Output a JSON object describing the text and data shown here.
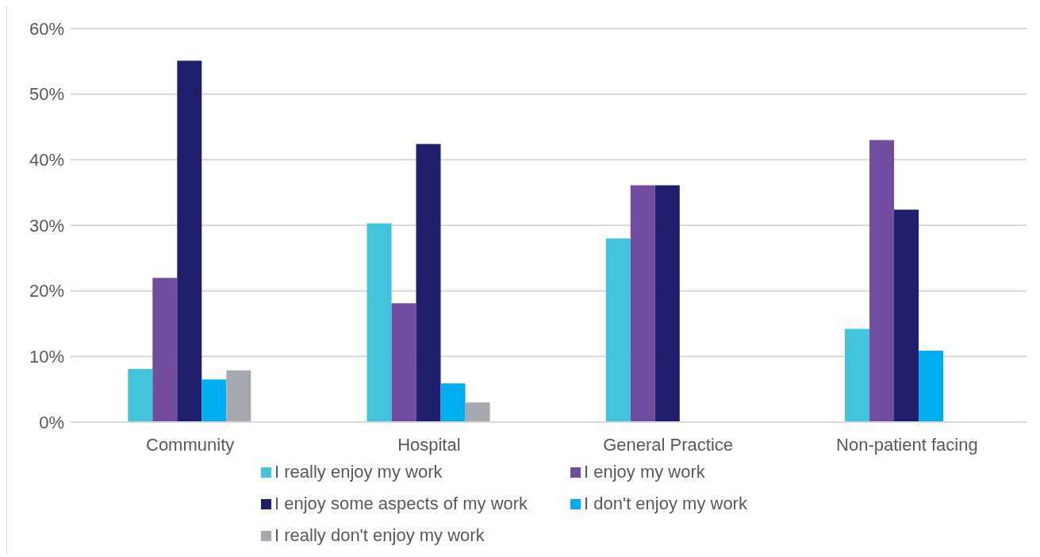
{
  "chart_data": {
    "type": "bar",
    "categories": [
      "Community",
      "Hospital",
      "General Practice",
      "Non-patient facing"
    ],
    "series": [
      {
        "name": "I really enjoy my work",
        "color": "#42c3dc",
        "values": [
          8.1,
          30.3,
          28,
          14.2
        ]
      },
      {
        "name": "I enjoy my work",
        "color": "#724c9e",
        "values": [
          22,
          18.1,
          36.1,
          43
        ]
      },
      {
        "name": "I enjoy some aspects of my work",
        "color": "#1f1f6e",
        "values": [
          55.1,
          42.4,
          36.1,
          32.4
        ]
      },
      {
        "name": "I don't enjoy my work",
        "color": "#00aeef",
        "values": [
          6.5,
          5.9,
          0,
          10.9
        ]
      },
      {
        "name": "I really don't enjoy my work",
        "color": "#a5a8ae",
        "values": [
          7.9,
          3,
          0,
          0
        ]
      }
    ],
    "ylim": [
      0,
      60
    ],
    "yticks": [
      {
        "value": 0,
        "label": "0%"
      },
      {
        "value": 10,
        "label": "10%"
      },
      {
        "value": 20,
        "label": "20%"
      },
      {
        "value": 30,
        "label": "30%"
      },
      {
        "value": 40,
        "label": "40%"
      },
      {
        "value": 50,
        "label": "50%"
      },
      {
        "value": 60,
        "label": "60%"
      }
    ],
    "grid": "y",
    "legend": "bottom"
  }
}
